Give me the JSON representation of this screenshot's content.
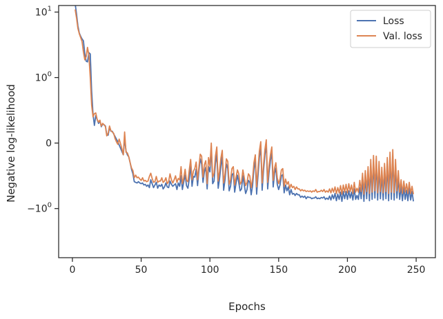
{
  "chart_data": {
    "type": "line",
    "xlabel": "Epochs",
    "ylabel": "Negative log-likelihood",
    "y_scale": "symlog",
    "x_range": [
      -10,
      264
    ],
    "y_range_axis_units": [
      -1.75,
      2.1
    ],
    "x_ticks": [
      {
        "value": 0,
        "label": "0"
      },
      {
        "value": 50,
        "label": "50"
      },
      {
        "value": 100,
        "label": "100"
      },
      {
        "value": 150,
        "label": "150"
      },
      {
        "value": 200,
        "label": "200"
      },
      {
        "value": 250,
        "label": "250"
      }
    ],
    "y_ticks": [
      {
        "value": 10,
        "base": "10",
        "exp": "1"
      },
      {
        "value": 1,
        "base": "10",
        "exp": "0"
      },
      {
        "value": 0,
        "base": "0",
        "exp": ""
      },
      {
        "value": -1,
        "base": "−10",
        "exp": "0"
      }
    ],
    "grid": false,
    "legend_position": "top-right",
    "series": [
      {
        "name": "Loss",
        "color": "#4c72b0",
        "x_start": 2,
        "x_step": 1,
        "y_axis_units": [
          2.13,
          1.97,
          1.79,
          1.68,
          1.63,
          1.59,
          1.56,
          1.36,
          1.25,
          1.24,
          1.38,
          1.36,
          0.79,
          0.44,
          0.27,
          0.42,
          0.36,
          0.3,
          0.34,
          0.25,
          0.29,
          0.28,
          0.26,
          0.13,
          0.12,
          0.24,
          0.18,
          0.18,
          0.14,
          0.1,
          0.06,
          0.02,
          -0.03,
          -0.08,
          -0.13,
          -0.18,
          0.07,
          -0.12,
          -0.18,
          -0.21,
          -0.3,
          -0.4,
          -0.47,
          -0.59,
          -0.6,
          -0.61,
          -0.59,
          -0.61,
          -0.62,
          -0.61,
          -0.64,
          -0.63,
          -0.66,
          -0.64,
          -0.68,
          -0.56,
          -0.62,
          -0.68,
          -0.64,
          -0.6,
          -0.69,
          -0.64,
          -0.66,
          -0.63,
          -0.7,
          -0.67,
          -0.61,
          -0.67,
          -0.68,
          -0.58,
          -0.63,
          -0.66,
          -0.64,
          -0.62,
          -0.71,
          -0.61,
          -0.66,
          -0.5,
          -0.71,
          -0.59,
          -0.49,
          -0.65,
          -0.69,
          -0.55,
          -0.34,
          -0.66,
          -0.51,
          -0.52,
          -0.4,
          -0.65,
          -0.42,
          -0.24,
          -0.32,
          -0.6,
          -0.44,
          -0.37,
          -0.7,
          -0.36,
          -0.44,
          -0.08,
          -0.62,
          -0.58,
          -0.31,
          -0.17,
          -0.69,
          -0.55,
          -0.36,
          -0.2,
          -0.72,
          -0.56,
          -0.32,
          -0.39,
          -0.73,
          -0.66,
          -0.49,
          -0.46,
          -0.75,
          -0.61,
          -0.49,
          -0.6,
          -0.73,
          -0.7,
          -0.5,
          -0.64,
          -0.77,
          -0.71,
          -0.57,
          -0.6,
          -0.79,
          -0.65,
          -0.4,
          -0.26,
          -0.78,
          -0.5,
          -0.22,
          -0.05,
          -0.72,
          -0.42,
          -0.18,
          -0.02,
          -0.7,
          -0.45,
          -0.27,
          -0.14,
          -0.67,
          -0.46,
          -0.38,
          -0.63,
          -0.71,
          -0.64,
          -0.5,
          -0.48,
          -0.76,
          -0.64,
          -0.73,
          -0.67,
          -0.79,
          -0.71,
          -0.78,
          -0.77,
          -0.8,
          -0.77,
          -0.79,
          -0.79,
          -0.83,
          -0.81,
          -0.83,
          -0.81,
          -0.85,
          -0.82,
          -0.83,
          -0.83,
          -0.85,
          -0.84,
          -0.84,
          -0.82,
          -0.85,
          -0.84,
          -0.85,
          -0.83,
          -0.84,
          -0.82,
          -0.86,
          -0.84,
          -0.86,
          -0.81,
          -0.87,
          -0.79,
          -0.85,
          -0.77,
          -0.88,
          -0.78,
          -0.86,
          -0.75,
          -0.89,
          -0.74,
          -0.85,
          -0.74,
          -0.86,
          -0.73,
          -0.84,
          -0.75,
          -0.87,
          -0.7,
          -0.86,
          -0.8,
          -0.86,
          -0.68,
          -0.85,
          -0.56,
          -0.89,
          -0.52,
          -0.85,
          -0.45,
          -0.88,
          -0.35,
          -0.86,
          -0.28,
          -0.84,
          -0.3,
          -0.87,
          -0.38,
          -0.85,
          -0.47,
          -0.87,
          -0.41,
          -0.85,
          -0.32,
          -0.88,
          -0.24,
          -0.86,
          -0.2,
          -0.87,
          -0.35,
          -0.84,
          -0.52,
          -0.86,
          -0.66,
          -0.88,
          -0.68,
          -0.86,
          -0.72,
          -0.88,
          -0.68,
          -0.87,
          -0.74,
          -0.89
        ]
      },
      {
        "name": "Val. loss",
        "color": "#dd8452",
        "x_start": 2,
        "x_step": 1,
        "y_axis_units": [
          2.04,
          1.91,
          1.75,
          1.67,
          1.61,
          1.55,
          1.39,
          1.27,
          1.32,
          1.46,
          1.34,
          1.0,
          0.58,
          0.4,
          0.45,
          0.46,
          0.36,
          0.32,
          0.35,
          0.26,
          0.3,
          0.28,
          0.25,
          0.11,
          0.15,
          0.26,
          0.19,
          0.17,
          0.15,
          0.07,
          0.02,
          -0.02,
          0.06,
          -0.01,
          -0.09,
          -0.18,
          0.17,
          -0.14,
          -0.15,
          -0.21,
          -0.3,
          -0.38,
          -0.42,
          -0.53,
          -0.49,
          -0.53,
          -0.52,
          -0.55,
          -0.57,
          -0.53,
          -0.58,
          -0.57,
          -0.59,
          -0.58,
          -0.51,
          -0.46,
          -0.54,
          -0.6,
          -0.59,
          -0.51,
          -0.6,
          -0.58,
          -0.58,
          -0.53,
          -0.6,
          -0.58,
          -0.53,
          -0.62,
          -0.59,
          -0.47,
          -0.56,
          -0.61,
          -0.56,
          -0.5,
          -0.6,
          -0.54,
          -0.56,
          -0.36,
          -0.62,
          -0.53,
          -0.4,
          -0.57,
          -0.59,
          -0.41,
          -0.25,
          -0.56,
          -0.43,
          -0.39,
          -0.29,
          -0.56,
          -0.36,
          -0.17,
          -0.2,
          -0.52,
          -0.33,
          -0.27,
          -0.62,
          -0.22,
          -0.35,
          0.0,
          -0.52,
          -0.46,
          -0.2,
          -0.06,
          -0.58,
          -0.43,
          -0.23,
          -0.11,
          -0.61,
          -0.47,
          -0.24,
          -0.28,
          -0.63,
          -0.56,
          -0.39,
          -0.36,
          -0.64,
          -0.52,
          -0.41,
          -0.47,
          -0.63,
          -0.59,
          -0.41,
          -0.53,
          -0.65,
          -0.6,
          -0.47,
          -0.5,
          -0.68,
          -0.55,
          -0.3,
          -0.18,
          -0.67,
          -0.39,
          -0.12,
          0.02,
          -0.61,
          -0.33,
          -0.1,
          0.05,
          -0.6,
          -0.34,
          -0.18,
          -0.06,
          -0.57,
          -0.38,
          -0.3,
          -0.53,
          -0.62,
          -0.55,
          -0.41,
          -0.39,
          -0.66,
          -0.55,
          -0.63,
          -0.59,
          -0.69,
          -0.63,
          -0.68,
          -0.66,
          -0.71,
          -0.67,
          -0.7,
          -0.7,
          -0.73,
          -0.71,
          -0.73,
          -0.72,
          -0.74,
          -0.73,
          -0.74,
          -0.73,
          -0.75,
          -0.73,
          -0.74,
          -0.71,
          -0.75,
          -0.74,
          -0.74,
          -0.72,
          -0.74,
          -0.71,
          -0.75,
          -0.73,
          -0.75,
          -0.7,
          -0.76,
          -0.69,
          -0.75,
          -0.67,
          -0.77,
          -0.68,
          -0.76,
          -0.65,
          -0.78,
          -0.64,
          -0.75,
          -0.63,
          -0.76,
          -0.62,
          -0.74,
          -0.64,
          -0.77,
          -0.6,
          -0.75,
          -0.69,
          -0.75,
          -0.57,
          -0.74,
          -0.46,
          -0.78,
          -0.42,
          -0.74,
          -0.36,
          -0.77,
          -0.25,
          -0.75,
          -0.19,
          -0.73,
          -0.2,
          -0.76,
          -0.28,
          -0.74,
          -0.37,
          -0.76,
          -0.31,
          -0.74,
          -0.22,
          -0.77,
          -0.14,
          -0.75,
          -0.1,
          -0.76,
          -0.25,
          -0.73,
          -0.42,
          -0.75,
          -0.56,
          -0.77,
          -0.58,
          -0.75,
          -0.62,
          -0.77,
          -0.6,
          -0.77,
          -0.66,
          -0.78
        ]
      }
    ]
  }
}
